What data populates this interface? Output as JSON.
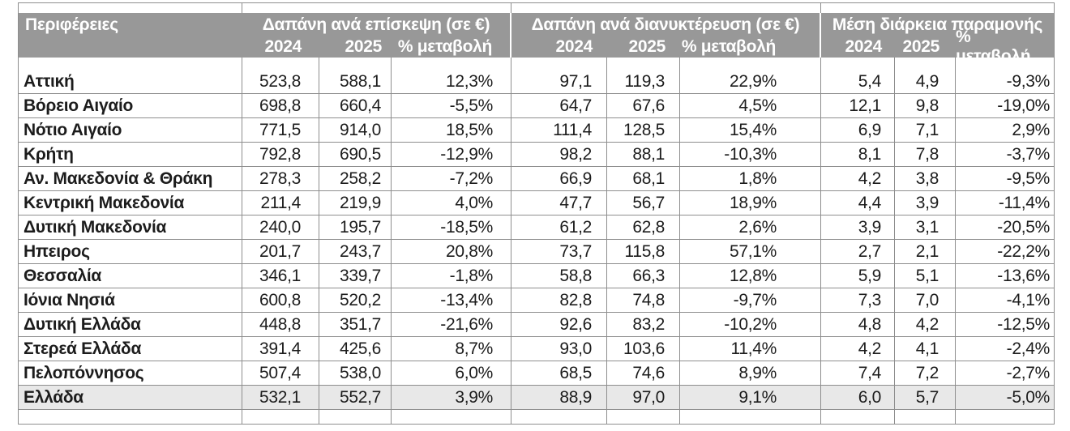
{
  "chart_data": {
    "type": "table",
    "region_column_header": "Περιφέρειες",
    "column_groups": [
      "Δαπάνη ανά επίσκεψη (σε €)",
      "Δαπάνη ανά διανυκτέρευση (σε €)",
      "Μέση διάρκεια παραμονής"
    ],
    "sub_columns": [
      "2024",
      "2025",
      "% μεταβολή"
    ],
    "rows": [
      {
        "region": "Αττική",
        "values": [
          "523,8",
          "588,1",
          "12,3%",
          "97,1",
          "119,3",
          "22,9%",
          "5,4",
          "4,9",
          "-9,3%"
        ],
        "total": false
      },
      {
        "region": "Βόρειο Αιγαίο",
        "values": [
          "698,8",
          "660,4",
          "-5,5%",
          "64,7",
          "67,6",
          "4,5%",
          "12,1",
          "9,8",
          "-19,0%"
        ],
        "total": false
      },
      {
        "region": "Νότιο Αιγαίο",
        "values": [
          "771,5",
          "914,0",
          "18,5%",
          "111,4",
          "128,5",
          "15,4%",
          "6,9",
          "7,1",
          "2,9%"
        ],
        "total": false
      },
      {
        "region": "Κρήτη",
        "values": [
          "792,8",
          "690,5",
          "-12,9%",
          "98,2",
          "88,1",
          "-10,3%",
          "8,1",
          "7,8",
          "-3,7%"
        ],
        "total": false
      },
      {
        "region": "Αν. Μακεδονία & Θράκη",
        "values": [
          "278,3",
          "258,2",
          "-7,2%",
          "66,9",
          "68,1",
          "1,8%",
          "4,2",
          "3,8",
          "-9,5%"
        ],
        "total": false
      },
      {
        "region": "Κεντρική Μακεδονία",
        "values": [
          "211,4",
          "219,9",
          "4,0%",
          "47,7",
          "56,7",
          "18,9%",
          "4,4",
          "3,9",
          "-11,4%"
        ],
        "total": false
      },
      {
        "region": "Δυτική Μακεδονία",
        "values": [
          "240,0",
          "195,7",
          "-18,5%",
          "61,2",
          "62,8",
          "2,6%",
          "3,9",
          "3,1",
          "-20,5%"
        ],
        "total": false
      },
      {
        "region": "Ηπειρος",
        "values": [
          "201,7",
          "243,7",
          "20,8%",
          "73,7",
          "115,8",
          "57,1%",
          "2,7",
          "2,1",
          "-22,2%"
        ],
        "total": false
      },
      {
        "region": "Θεσσαλία",
        "values": [
          "346,1",
          "339,7",
          "-1,8%",
          "58,8",
          "66,3",
          "12,8%",
          "5,9",
          "5,1",
          "-13,6%"
        ],
        "total": false
      },
      {
        "region": "Ιόνια Νησιά",
        "values": [
          "600,8",
          "520,2",
          "-13,4%",
          "82,8",
          "74,8",
          "-9,7%",
          "7,3",
          "7,0",
          "-4,1%"
        ],
        "total": false
      },
      {
        "region": "Δυτική Ελλάδα",
        "values": [
          "448,8",
          "351,7",
          "-21,6%",
          "92,6",
          "83,2",
          "-10,2%",
          "4,8",
          "4,2",
          "-12,5%"
        ],
        "total": false
      },
      {
        "region": "Στερεά Ελλάδα",
        "values": [
          "391,4",
          "425,6",
          "8,7%",
          "93,0",
          "103,6",
          "11,4%",
          "4,2",
          "4,1",
          "-2,4%"
        ],
        "total": false
      },
      {
        "region": "Πελοπόννησος",
        "values": [
          "507,4",
          "538,0",
          "6,0%",
          "68,5",
          "74,6",
          "8,9%",
          "7,4",
          "7,2",
          "-2,7%"
        ],
        "total": false
      },
      {
        "region": "Ελλάδα",
        "values": [
          "532,1",
          "552,7",
          "3,9%",
          "88,9",
          "97,0",
          "9,1%",
          "6,0",
          "5,7",
          "-5,0%"
        ],
        "total": true
      }
    ]
  },
  "colors": {
    "header_bg": "#989898",
    "header_text": "#ffffff",
    "grid_line": "#8e8e8e",
    "total_row_bg": "#e8e8e8",
    "text": "#1c1c1c"
  }
}
